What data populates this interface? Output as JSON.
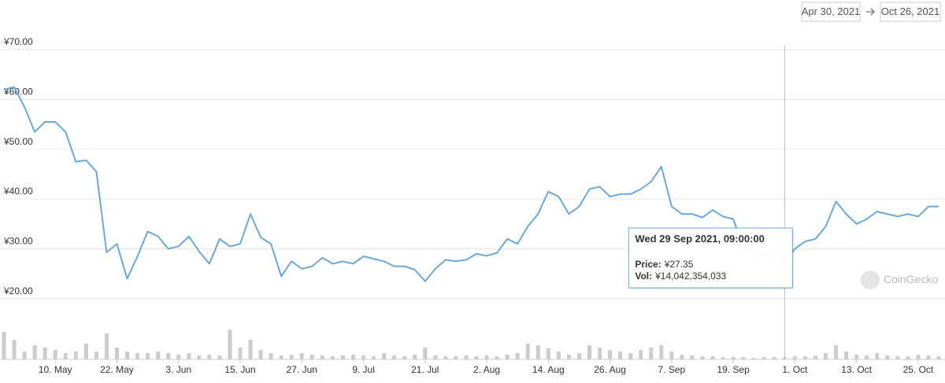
{
  "chart_data": {
    "type": "line",
    "range_start": "Apr 30, 2021",
    "range_end": "Oct 26, 2021",
    "watermark": "CoinGecko",
    "x": [
      "2021-04-30",
      "2021-05-02",
      "2021-05-04",
      "2021-05-06",
      "2021-05-08",
      "2021-05-10",
      "2021-05-12",
      "2021-05-14",
      "2021-05-16",
      "2021-05-18",
      "2021-05-20",
      "2021-05-22",
      "2021-05-24",
      "2021-05-26",
      "2021-05-28",
      "2021-05-30",
      "2021-06-01",
      "2021-06-03",
      "2021-06-05",
      "2021-06-07",
      "2021-06-09",
      "2021-06-11",
      "2021-06-13",
      "2021-06-15",
      "2021-06-17",
      "2021-06-19",
      "2021-06-21",
      "2021-06-23",
      "2021-06-25",
      "2021-06-27",
      "2021-06-29",
      "2021-07-01",
      "2021-07-03",
      "2021-07-05",
      "2021-07-07",
      "2021-07-09",
      "2021-07-11",
      "2021-07-13",
      "2021-07-15",
      "2021-07-17",
      "2021-07-19",
      "2021-07-21",
      "2021-07-23",
      "2021-07-25",
      "2021-07-27",
      "2021-07-29",
      "2021-07-31",
      "2021-08-02",
      "2021-08-04",
      "2021-08-06",
      "2021-08-08",
      "2021-08-10",
      "2021-08-12",
      "2021-08-14",
      "2021-08-16",
      "2021-08-18",
      "2021-08-20",
      "2021-08-22",
      "2021-08-24",
      "2021-08-26",
      "2021-08-28",
      "2021-08-30",
      "2021-09-01",
      "2021-09-03",
      "2021-09-05",
      "2021-09-07",
      "2021-09-09",
      "2021-09-11",
      "2021-09-13",
      "2021-09-15",
      "2021-09-17",
      "2021-09-19",
      "2021-09-21",
      "2021-09-23",
      "2021-09-25",
      "2021-09-27",
      "2021-09-29",
      "2021-10-01",
      "2021-10-03",
      "2021-10-05",
      "2021-10-07",
      "2021-10-09",
      "2021-10-11",
      "2021-10-13",
      "2021-10-15",
      "2021-10-17",
      "2021-10-19",
      "2021-10-21",
      "2021-10-23",
      "2021-10-25",
      "2021-10-27",
      "2021-10-29"
    ],
    "series": [
      {
        "color": "#6aa8d8",
        "values": [
          62.0,
          62.5,
          58.5,
          53.5,
          55.5,
          55.5,
          53.5,
          47.5,
          47.8,
          45.5,
          29.3,
          31,
          24,
          28.5,
          33.5,
          32.5,
          30,
          30.5,
          32.5,
          29.5,
          27,
          32,
          30.5,
          31,
          37,
          32.3,
          31,
          24.5,
          27.5,
          26,
          26.5,
          28.2,
          27,
          27.5,
          27,
          28.5,
          28,
          27.5,
          26.5,
          26.5,
          25.8,
          23.5,
          26,
          27.8,
          27.5,
          27.8,
          29,
          28.6,
          29.2,
          32,
          31,
          34.5,
          37,
          41.5,
          40.5,
          37,
          38.5,
          42,
          42.5,
          40.5,
          41,
          41,
          42,
          43.5,
          46.5,
          38.5,
          37,
          37,
          36.3,
          37.8,
          36.5,
          36,
          30,
          29.5,
          29,
          28,
          27.35,
          30,
          31.5,
          32,
          34.5,
          39.5,
          37,
          35,
          36,
          37.5,
          37,
          36.5,
          37,
          36.5,
          38.5,
          38.5
        ]
      },
      {
        "color": "#cccccc",
        "axis": "y2",
        "values": [
          175000000000.0,
          125000000000.0,
          50000000000.0,
          90000000000.0,
          75000000000.0,
          60000000000.0,
          40000000000.0,
          50000000000.0,
          100000000000.0,
          50000000000.0,
          165000000000.0,
          75000000000.0,
          50000000000.0,
          40000000000.0,
          40000000000.0,
          50000000000.0,
          40000000000.0,
          30000000000.0,
          40000000000.0,
          25000000000.0,
          30000000000.0,
          25000000000.0,
          190000000000.0,
          75000000000.0,
          125000000000.0,
          60000000000.0,
          40000000000.0,
          25000000000.0,
          30000000000.0,
          40000000000.0,
          30000000000.0,
          25000000000.0,
          20000000000.0,
          25000000000.0,
          30000000000.0,
          25000000000.0,
          20000000000.0,
          40000000000.0,
          25000000000.0,
          20000000000.0,
          30000000000.0,
          75000000000.0,
          25000000000.0,
          20000000000.0,
          20000000000.0,
          25000000000.0,
          20000000000.0,
          25000000000.0,
          20000000000.0,
          30000000000.0,
          40000000000.0,
          100000000000.0,
          90000000000.0,
          70000000000.0,
          50000000000.0,
          30000000000.0,
          40000000000.0,
          90000000000.0,
          75000000000.0,
          60000000000.0,
          50000000000.0,
          40000000000.0,
          60000000000.0,
          75000000000.0,
          90000000000.0,
          50000000000.0,
          30000000000.0,
          25000000000.0,
          20000000000.0,
          20000000000.0,
          15000000000.0,
          15000000000.0,
          15000000000.0,
          10000000000.0,
          15000000000.0,
          15000000000.0,
          14042354033,
          20000000000.0,
          20000000000.0,
          25000000000.0,
          40000000000.0,
          90000000000.0,
          50000000000.0,
          30000000000.0,
          25000000000.0,
          40000000000.0,
          25000000000.0,
          20000000000.0,
          20000000000.0,
          30000000000.0,
          25000000000.0,
          20000000000.0
        ]
      }
    ],
    "xlim": [
      "2021-04-30",
      "2021-10-29"
    ],
    "xticks": [
      {
        "value": "2021-05-10",
        "label": "10. May"
      },
      {
        "value": "2021-05-22",
        "label": "22. May"
      },
      {
        "value": "2021-06-03",
        "label": "3. Jun"
      },
      {
        "value": "2021-06-15",
        "label": "15. Jun"
      },
      {
        "value": "2021-06-27",
        "label": "27. Jun"
      },
      {
        "value": "2021-07-09",
        "label": "9. Jul"
      },
      {
        "value": "2021-07-21",
        "label": "21. Jul"
      },
      {
        "value": "2021-08-02",
        "label": "2. Aug"
      },
      {
        "value": "2021-08-14",
        "label": "14. Aug"
      },
      {
        "value": "2021-08-26",
        "label": "26. Aug"
      },
      {
        "value": "2021-09-07",
        "label": "7. Sep"
      },
      {
        "value": "2021-09-19",
        "label": "19. Sep"
      },
      {
        "value": "2021-10-01",
        "label": "1. Oct"
      },
      {
        "value": "2021-10-13",
        "label": "13. Oct"
      },
      {
        "value": "2021-10-25",
        "label": "25. Oct"
      }
    ],
    "ylim": [
      7.8,
      70.9
    ],
    "yticks": [
      {
        "value": 20,
        "label": "¥20.00"
      },
      {
        "value": 30,
        "label": "¥30.00"
      },
      {
        "value": 40,
        "label": "¥40.00"
      },
      {
        "value": 50,
        "label": "¥50.00"
      },
      {
        "value": 60,
        "label": "¥60.00"
      },
      {
        "value": 70,
        "label": "¥70.00"
      }
    ],
    "y2lim": [
      0,
      2000000000000
    ],
    "grid": true,
    "tooltip": {
      "title": "Wed 29 Sep 2021, 09:00:00",
      "rows": [
        {
          "label": "Price:",
          "value": 27.35,
          "value_label": "¥27.35"
        },
        {
          "label": "Vol:",
          "value": 14042354033,
          "value_label": "¥14,042,354,033"
        }
      ]
    }
  }
}
